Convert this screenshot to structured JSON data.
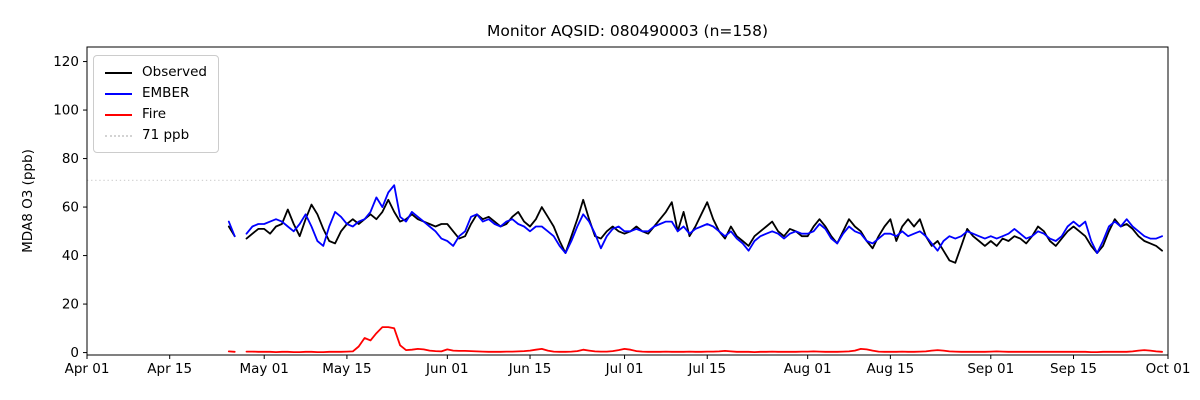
{
  "chart_data": {
    "type": "line",
    "title": "Monitor AQSID: 080490003 (n=158)",
    "xlabel": "",
    "ylabel": "MDA8 O3 (ppb)",
    "ylim": [
      -1,
      126
    ],
    "yticks": [
      0,
      20,
      40,
      60,
      80,
      100,
      120
    ],
    "grid": "off",
    "x_axis": {
      "xlim_days": [
        0,
        183
      ],
      "tick_labels": [
        "Apr 01",
        "Apr 15",
        "May 01",
        "May 15",
        "Jun 01",
        "Jun 15",
        "Jul 01",
        "Jul 15",
        "Aug 01",
        "Aug 15",
        "Sep 01",
        "Sep 15",
        "Oct 01"
      ],
      "tick_day_offsets": [
        0,
        14,
        30,
        44,
        61,
        75,
        91,
        105,
        122,
        136,
        153,
        167,
        183
      ]
    },
    "threshold": {
      "label": "71 ppb",
      "value": 71,
      "color": "#d3d3d3",
      "style": "dotted"
    },
    "series_start_label": "Apr 25",
    "series_start_day_offset": 24,
    "n_points": 158,
    "series": [
      {
        "name": "Observed",
        "color": "#000000",
        "values": [
          52,
          48,
          null,
          47,
          49,
          51,
          51,
          49,
          52,
          53,
          59,
          53,
          48,
          55,
          61,
          57,
          51,
          46,
          45,
          50,
          53,
          55,
          53,
          55,
          57,
          55,
          58,
          63,
          58,
          54,
          55,
          57,
          55,
          54,
          53,
          52,
          53,
          53,
          50,
          47,
          48,
          53,
          57,
          55,
          56,
          54,
          52,
          53,
          56,
          58,
          54,
          52,
          55,
          60,
          56,
          52,
          46,
          41,
          48,
          55,
          63,
          55,
          48,
          47,
          50,
          52,
          50,
          49,
          50,
          52,
          50,
          49,
          52,
          55,
          58,
          62,
          50,
          58,
          48,
          52,
          57,
          62,
          55,
          50,
          47,
          52,
          48,
          46,
          44,
          48,
          50,
          52,
          54,
          50,
          48,
          51,
          50,
          48,
          48,
          52,
          55,
          52,
          48,
          45,
          50,
          55,
          52,
          50,
          46,
          43,
          48,
          52,
          55,
          46,
          52,
          55,
          52,
          55,
          48,
          44,
          46,
          42,
          38,
          37,
          44,
          51,
          48,
          46,
          44,
          46,
          44,
          47,
          46,
          48,
          47,
          45,
          48,
          52,
          50,
          46,
          44,
          47,
          50,
          52,
          50,
          48,
          44,
          41,
          44,
          50,
          55,
          52,
          53,
          51,
          48,
          46,
          45,
          44,
          42
        ]
      },
      {
        "name": "EMBER",
        "color": "#0000ff",
        "values": [
          54,
          48,
          null,
          49,
          52,
          53,
          53,
          54,
          55,
          54,
          52,
          50,
          53,
          57,
          52,
          46,
          44,
          52,
          58,
          56,
          53,
          52,
          54,
          55,
          58,
          64,
          60,
          66,
          69,
          56,
          54,
          58,
          56,
          54,
          52,
          50,
          47,
          46,
          44,
          48,
          50,
          56,
          57,
          54,
          55,
          53,
          52,
          54,
          55,
          53,
          52,
          50,
          52,
          52,
          50,
          48,
          44,
          41,
          46,
          52,
          57,
          54,
          49,
          43,
          48,
          51,
          52,
          50,
          50,
          51,
          50,
          50,
          52,
          53,
          54,
          54,
          50,
          52,
          49,
          51,
          52,
          53,
          52,
          50,
          48,
          50,
          47,
          45,
          42,
          46,
          48,
          49,
          50,
          49,
          47,
          49,
          50,
          49,
          49,
          50,
          53,
          51,
          47,
          45,
          49,
          52,
          50,
          49,
          46,
          45,
          47,
          49,
          49,
          48,
          50,
          48,
          49,
          50,
          48,
          45,
          42,
          46,
          48,
          47,
          48,
          50,
          49,
          48,
          47,
          48,
          47,
          48,
          49,
          51,
          49,
          47,
          48,
          50,
          49,
          47,
          46,
          48,
          52,
          54,
          52,
          54,
          46,
          41,
          46,
          52,
          54,
          52,
          55,
          52,
          50,
          48,
          47,
          47,
          48
        ]
      },
      {
        "name": "Fire",
        "color": "#ff0000",
        "values": [
          0.5,
          0.3,
          null,
          0.4,
          0.4,
          0.3,
          0.3,
          0.3,
          0.2,
          0.3,
          0.3,
          0.2,
          0.2,
          0.3,
          0.3,
          0.2,
          0.2,
          0.3,
          0.3,
          0.3,
          0.4,
          0.5,
          2.5,
          6,
          5,
          8,
          10.5,
          10.5,
          10,
          3,
          1,
          1.2,
          1.5,
          1.3,
          0.8,
          0.6,
          0.5,
          1.3,
          0.8,
          0.7,
          0.7,
          0.6,
          0.5,
          0.4,
          0.3,
          0.3,
          0.3,
          0.4,
          0.4,
          0.5,
          0.6,
          0.8,
          1.2,
          1.5,
          0.8,
          0.4,
          0.3,
          0.3,
          0.4,
          0.6,
          1.2,
          0.8,
          0.5,
          0.4,
          0.4,
          0.6,
          1.0,
          1.5,
          1.2,
          0.6,
          0.4,
          0.3,
          0.3,
          0.3,
          0.4,
          0.3,
          0.3,
          0.3,
          0.4,
          0.3,
          0.3,
          0.4,
          0.4,
          0.5,
          0.7,
          0.5,
          0.3,
          0.3,
          0.3,
          0.2,
          0.3,
          0.3,
          0.4,
          0.3,
          0.3,
          0.3,
          0.3,
          0.4,
          0.4,
          0.5,
          0.4,
          0.3,
          0.3,
          0.3,
          0.4,
          0.5,
          0.8,
          1.5,
          1.3,
          0.8,
          0.4,
          0.3,
          0.3,
          0.3,
          0.4,
          0.3,
          0.3,
          0.4,
          0.5,
          0.8,
          1.0,
          0.8,
          0.5,
          0.4,
          0.3,
          0.3,
          0.3,
          0.3,
          0.3,
          0.4,
          0.5,
          0.4,
          0.3,
          0.3,
          0.3,
          0.3,
          0.3,
          0.3,
          0.3,
          0.3,
          0.3,
          0.3,
          0.3,
          0.3,
          0.3,
          0.3,
          0.2,
          0.2,
          0.3,
          0.3,
          0.3,
          0.3,
          0.3,
          0.5,
          0.8,
          1.0,
          0.8,
          0.5,
          0.3
        ]
      }
    ],
    "legend": {
      "position": "upper-left",
      "entries": [
        {
          "label": "Observed",
          "color": "#000000",
          "style": "solid"
        },
        {
          "label": "EMBER",
          "color": "#0000ff",
          "style": "solid"
        },
        {
          "label": "Fire",
          "color": "#ff0000",
          "style": "solid"
        },
        {
          "label": "71 ppb",
          "color": "#d3d3d3",
          "style": "dotted"
        }
      ]
    }
  }
}
